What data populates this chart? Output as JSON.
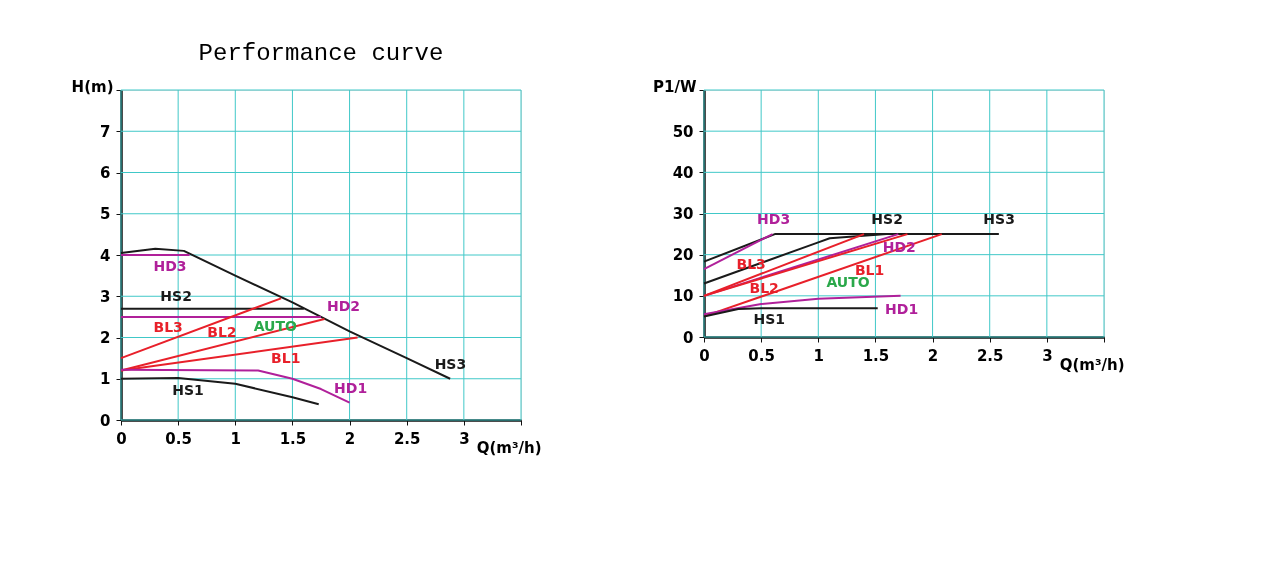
{
  "chart_data": [
    {
      "type": "line",
      "title": "Performance curve",
      "xlabel": "Q(m³/h)",
      "ylabel": "H(m)",
      "legend": false,
      "grid": true,
      "marker": "none",
      "line_style": "solid",
      "xlim": [
        0,
        3.5
      ],
      "xticks": [
        0,
        0.5,
        1,
        1.5,
        2,
        2.5,
        3,
        {
          "value": 3.5,
          "label": null
        }
      ],
      "ylim": [
        0,
        8
      ],
      "yticks": [
        0,
        1,
        2,
        3,
        4,
        5,
        6,
        7,
        {
          "value": 8,
          "label": null
        }
      ],
      "series": [
        {
          "name": "HS3",
          "color": "#1a1a1a",
          "x": [
            0,
            0.3,
            0.55,
            1,
            1.5,
            2,
            2.5,
            2.88
          ],
          "values": [
            4.05,
            4.15,
            4.1,
            3.5,
            2.85,
            2.15,
            1.5,
            1.0
          ]
        },
        {
          "name": "HD3",
          "color": "#b0209a",
          "x": [
            0,
            0.6
          ],
          "values": [
            4.0,
            4.0
          ]
        },
        {
          "name": "HS2",
          "color": "#1a1a1a",
          "x": [
            0,
            1.6
          ],
          "values": [
            2.7,
            2.7
          ]
        },
        {
          "name": "HD2",
          "color": "#b0209a",
          "x": [
            0,
            1.75
          ],
          "values": [
            2.5,
            2.5
          ]
        },
        {
          "name": "BL3",
          "color": "#e8202a",
          "x": [
            0,
            1.4
          ],
          "values": [
            1.5,
            2.95
          ]
        },
        {
          "name": "BL2",
          "color": "#e8202a",
          "x": [
            0,
            1.78
          ],
          "values": [
            1.2,
            2.45
          ]
        },
        {
          "name": "BL1",
          "color": "#e8202a",
          "x": [
            0,
            2.07
          ],
          "values": [
            1.2,
            2.0
          ]
        },
        {
          "name": "HD1",
          "color": "#b0209a",
          "x": [
            0,
            1.2,
            1.5,
            1.75,
            2.0
          ],
          "values": [
            1.22,
            1.2,
            1.0,
            0.75,
            0.42
          ]
        },
        {
          "name": "HS1",
          "color": "#1a1a1a",
          "x": [
            0,
            0.5,
            1,
            1.5,
            1.73
          ],
          "values": [
            1.0,
            1.02,
            0.88,
            0.55,
            0.38
          ]
        }
      ],
      "annotations": [
        {
          "text": "AUTO",
          "x": 1.35,
          "y": 2.25
        }
      ]
    },
    {
      "type": "line",
      "xlabel": "Q(m³/h)",
      "ylabel": "P1/W",
      "legend": false,
      "grid": true,
      "marker": "none",
      "line_style": "solid",
      "xlim": [
        0,
        3.5
      ],
      "xticks": [
        0,
        0.5,
        1,
        1.5,
        2,
        2.5,
        3,
        {
          "value": 3.5,
          "label": null
        }
      ],
      "ylim": [
        0,
        60
      ],
      "yticks": [
        0,
        10,
        20,
        30,
        40,
        50,
        {
          "value": 60,
          "label": null
        }
      ],
      "series": [
        {
          "name": "HS3",
          "color": "#1a1a1a",
          "x": [
            0,
            0.62,
            2.58
          ],
          "values": [
            18.3,
            25,
            25
          ]
        },
        {
          "name": "HD3",
          "color": "#b0209a",
          "x": [
            0,
            0.6
          ],
          "values": [
            16.5,
            25
          ]
        },
        {
          "name": "HS2",
          "color": "#1a1a1a",
          "x": [
            0,
            1.0,
            1.1,
            1.6
          ],
          "values": [
            13,
            23,
            24,
            25
          ]
        },
        {
          "name": "HD2",
          "color": "#b0209a",
          "x": [
            0,
            1.7
          ],
          "values": [
            10,
            25
          ]
        },
        {
          "name": "BL3",
          "color": "#e8202a",
          "x": [
            0,
            1.4
          ],
          "values": [
            10,
            25
          ]
        },
        {
          "name": "BL2",
          "color": "#e8202a",
          "x": [
            0,
            1.78
          ],
          "values": [
            10,
            25
          ]
        },
        {
          "name": "BL1",
          "color": "#e8202a",
          "x": [
            0,
            2.08
          ],
          "values": [
            5,
            25
          ]
        },
        {
          "name": "HD1",
          "color": "#b0209a",
          "x": [
            0,
            0.5,
            1,
            1.72
          ],
          "values": [
            5.5,
            8,
            9.3,
            10
          ]
        },
        {
          "name": "HS1",
          "color": "#1a1a1a",
          "x": [
            0,
            0.3,
            0.5,
            1.52
          ],
          "values": [
            5,
            6.8,
            7,
            7
          ]
        }
      ],
      "annotations": [
        "AUTO"
      ]
    }
  ]
}
